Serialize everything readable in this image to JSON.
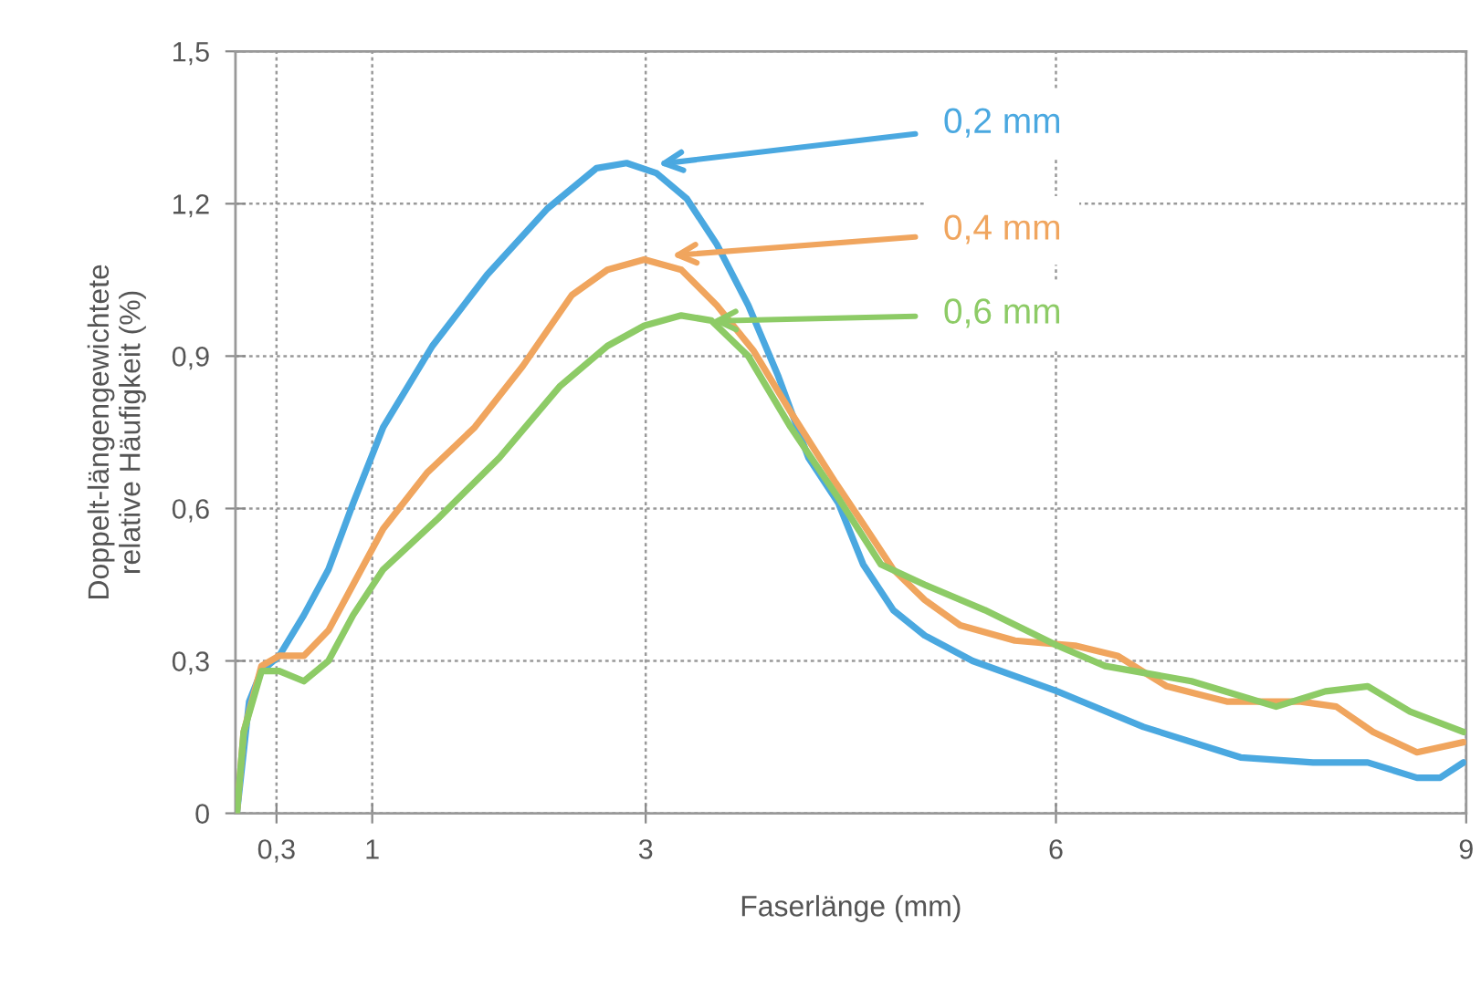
{
  "chart_data": {
    "type": "line",
    "xlabel": "Faserlänge (mm)",
    "ylabel": "Doppelt-längengewichtete\nrelative Häufigkeit (%)",
    "xlim": [
      0,
      9
    ],
    "ylim": [
      0,
      1.5
    ],
    "xticks": [
      {
        "value": 0.3,
        "label": "0,3"
      },
      1,
      3,
      6,
      9
    ],
    "yticks": [
      0,
      {
        "value": 0.3,
        "label": "0,3"
      },
      {
        "value": 0.6,
        "label": "0,6"
      },
      {
        "value": 0.9,
        "label": "0,9"
      },
      {
        "value": 1.2,
        "label": "1,2"
      },
      {
        "value": 1.5,
        "label": "1,5"
      }
    ],
    "grid": true,
    "marker": "none",
    "line_style": "solid",
    "series": [
      {
        "color": "#4aa8e0",
        "x": [
          0.01,
          0.1,
          0.19,
          0.32,
          0.5,
          0.68,
          0.86,
          1.08,
          1.44,
          1.84,
          2.28,
          2.64,
          2.86,
          3.08,
          3.3,
          3.52,
          3.75,
          3.97,
          4.19,
          4.41,
          4.59,
          4.81,
          5.04,
          5.39,
          6.01,
          6.64,
          7.35,
          7.88,
          8.28,
          8.64,
          8.81,
          8.98
        ],
        "values": [
          0,
          0.22,
          0.28,
          0.31,
          0.39,
          0.48,
          0.61,
          0.76,
          0.92,
          1.06,
          1.19,
          1.27,
          1.28,
          1.26,
          1.21,
          1.12,
          1.0,
          0.86,
          0.7,
          0.61,
          0.49,
          0.4,
          0.35,
          0.3,
          0.24,
          0.17,
          0.11,
          0.1,
          0.1,
          0.07,
          0.07,
          0.1
        ]
      },
      {
        "color": "#f0a55e",
        "x": [
          0.01,
          0.06,
          0.19,
          0.32,
          0.5,
          0.68,
          0.86,
          1.08,
          1.4,
          1.75,
          2.1,
          2.46,
          2.72,
          2.99,
          3.26,
          3.52,
          3.79,
          4.06,
          4.39,
          4.59,
          4.81,
          5.04,
          5.3,
          5.7,
          6.14,
          6.45,
          6.81,
          7.25,
          7.79,
          8.05,
          8.32,
          8.64,
          8.98
        ],
        "values": [
          0,
          0.16,
          0.29,
          0.31,
          0.31,
          0.36,
          0.45,
          0.56,
          0.67,
          0.76,
          0.88,
          1.02,
          1.07,
          1.09,
          1.07,
          1.0,
          0.91,
          0.79,
          0.65,
          0.57,
          0.48,
          0.42,
          0.37,
          0.34,
          0.33,
          0.31,
          0.25,
          0.22,
          0.22,
          0.21,
          0.16,
          0.12,
          0.14
        ]
      },
      {
        "color": "#8dcb66",
        "x": [
          0.01,
          0.06,
          0.19,
          0.32,
          0.5,
          0.68,
          0.86,
          1.08,
          1.48,
          1.93,
          2.37,
          2.72,
          2.99,
          3.26,
          3.48,
          3.75,
          4.06,
          4.41,
          4.72,
          5.04,
          5.48,
          6.01,
          6.36,
          6.99,
          7.61,
          7.97,
          8.28,
          8.59,
          8.98
        ],
        "values": [
          0,
          0.16,
          0.28,
          0.28,
          0.26,
          0.3,
          0.39,
          0.48,
          0.58,
          0.7,
          0.84,
          0.92,
          0.96,
          0.98,
          0.97,
          0.9,
          0.76,
          0.62,
          0.49,
          0.45,
          0.4,
          0.33,
          0.29,
          0.26,
          0.21,
          0.24,
          0.25,
          0.2,
          0.16
        ]
      }
    ],
    "annotations": [
      {
        "text": "0,2 mm",
        "x": 3.09,
        "y": 1.278
      },
      {
        "text": "0,4 mm",
        "x": 3.19,
        "y": 1.098
      },
      {
        "text": "0,6 mm",
        "x": 3.48,
        "y": 0.969
      }
    ]
  }
}
